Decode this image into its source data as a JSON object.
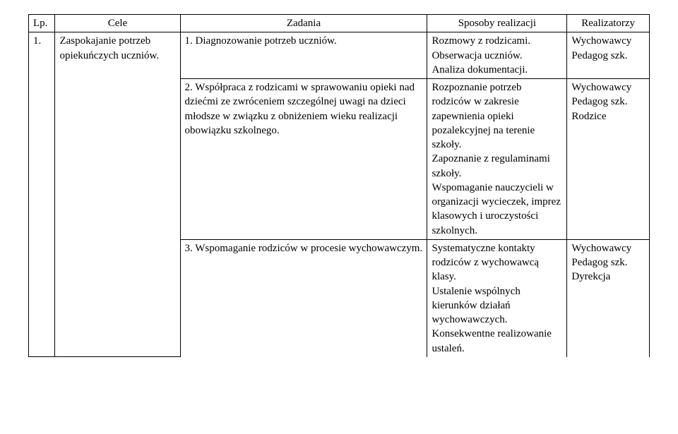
{
  "header": {
    "lp": "Lp.",
    "cele": "Cele",
    "zadania": "Zadania",
    "sposoby": "Sposoby realizacji",
    "realizatorzy": "Realizatorzy"
  },
  "row1": {
    "num": "1.",
    "cele": "Zaspokajanie potrzeb opiekuńczych uczniów.",
    "task1": "1. Diagnozowanie potrzeb  uczniów.",
    "ways1": "Rozmowy z rodzicami.\nObserwacja uczniów.\nAnaliza dokumentacji.",
    "real1": "Wychowawcy\nPedagog szk.",
    "task2": "2. Współpraca z rodzicami w sprawowaniu opieki nad dziećmi ze zwróceniem szczególnej uwagi na dzieci młodsze w związku z obniżeniem wieku realizacji obowiązku szkolnego.",
    "ways2": "Rozpoznanie potrzeb rodziców w zakresie zapewnienia opieki pozalekcyjnej na terenie szkoły.\nZapoznanie z regulaminami szkoły.\nWspomaganie nauczycieli w organizacji wycieczek, imprez klasowych i uroczystości szkolnych.",
    "real2": "Wychowawcy\nPedagog szk.\nRodzice",
    "task3": "3. Wspomaganie rodziców w procesie wychowawczym.",
    "ways3": "Systematyczne kontakty rodziców z wychowawcą klasy.\nUstalenie wspólnych kierunków działań wychowawczych.\nKonsekwentne realizowanie ustaleń.",
    "real3": "Wychowawcy\nPedagog szk.\nDyrekcja"
  }
}
